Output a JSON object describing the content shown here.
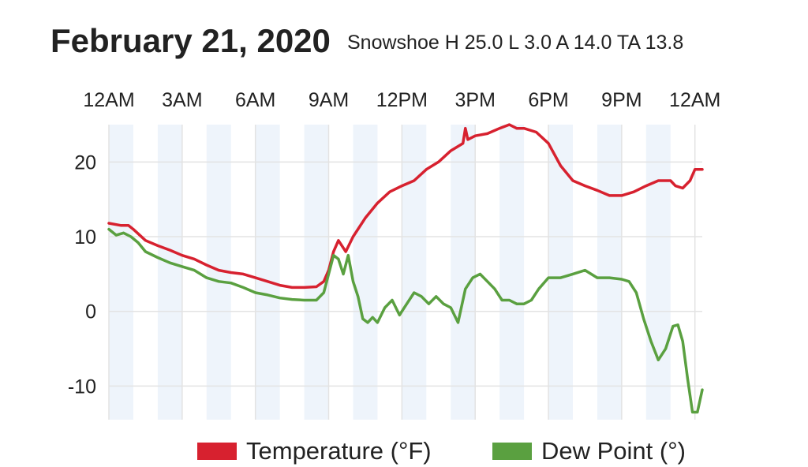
{
  "header": {
    "title": "February 21, 2020",
    "subtitle": "Snowshoe H 25.0 L 3.0 A 14.0 TA 13.8"
  },
  "colors": {
    "temperature": "#d7212f",
    "dew_point": "#5aa040",
    "band": "#eef4fb",
    "grid": "#e3e3e3"
  },
  "chart_data": {
    "type": "line",
    "x_axis": {
      "position": "top",
      "ticks": [
        0,
        3,
        6,
        9,
        12,
        15,
        18,
        21,
        24
      ],
      "tick_labels": [
        "12AM",
        "3AM",
        "6AM",
        "9AM",
        "12PM",
        "3PM",
        "6PM",
        "9PM",
        "12AM"
      ],
      "range": [
        0,
        24.3
      ],
      "unit": "hour"
    },
    "y_axis": {
      "ticks": [
        20,
        10,
        0,
        -10
      ],
      "tick_labels": [
        "20",
        "10",
        "0",
        "-10"
      ],
      "range": [
        -14.5,
        25
      ]
    },
    "grid": true,
    "legend_position": "bottom",
    "series": [
      {
        "name": "Temperature (°F)",
        "x": [
          0,
          0.5,
          0.8,
          1,
          1.5,
          2,
          2.5,
          3,
          3.5,
          4,
          4.5,
          5,
          5.5,
          6,
          6.5,
          7,
          7.5,
          8,
          8.5,
          8.8,
          9.0,
          9.2,
          9.4,
          9.7,
          10,
          10.5,
          11,
          11.5,
          12,
          12.5,
          13,
          13.5,
          14,
          14.5,
          14.6,
          14.7,
          15,
          15.5,
          16,
          16.4,
          16.7,
          17,
          17.5,
          18,
          18.5,
          19,
          19.5,
          20,
          20.5,
          21,
          21.5,
          22,
          22.5,
          23,
          23.2,
          23.5,
          23.8,
          24.0,
          24.3
        ],
        "y": [
          11.8,
          11.5,
          11.5,
          11,
          9.5,
          8.8,
          8.2,
          7.5,
          7,
          6.2,
          5.5,
          5.2,
          5,
          4.5,
          4,
          3.5,
          3.2,
          3.2,
          3.3,
          4,
          5.5,
          8,
          9.5,
          8,
          10,
          12.5,
          14.5,
          16,
          16.8,
          17.5,
          19,
          20,
          21.5,
          22.5,
          24.5,
          23,
          23.5,
          23.8,
          24.5,
          25,
          24.5,
          24.5,
          24,
          22.5,
          19.5,
          17.5,
          16.8,
          16.2,
          15.5,
          15.5,
          16,
          16.8,
          17.5,
          17.5,
          16.8,
          16.5,
          17.5,
          19,
          19
        ]
      },
      {
        "name": "Dew Point (°)",
        "x": [
          0,
          0.3,
          0.6,
          0.9,
          1.2,
          1.5,
          2,
          2.5,
          3,
          3.5,
          4,
          4.5,
          5,
          5.5,
          6,
          6.5,
          7,
          7.5,
          8,
          8.5,
          8.8,
          9.0,
          9.2,
          9.4,
          9.6,
          9.8,
          10,
          10.2,
          10.4,
          10.6,
          10.8,
          11,
          11.3,
          11.6,
          11.9,
          12.2,
          12.5,
          12.8,
          13.1,
          13.4,
          13.7,
          14.0,
          14.3,
          14.6,
          14.9,
          15.2,
          15.5,
          15.8,
          16.1,
          16.4,
          16.7,
          17.0,
          17.3,
          17.6,
          18,
          18.5,
          19,
          19.5,
          20,
          20.5,
          21,
          21.3,
          21.6,
          21.9,
          22.2,
          22.5,
          22.8,
          23.1,
          23.3,
          23.5,
          23.7,
          23.9,
          24.1,
          24.3
        ],
        "y": [
          11,
          10.2,
          10.5,
          10,
          9.2,
          8,
          7.2,
          6.5,
          6,
          5.5,
          4.5,
          4,
          3.8,
          3.2,
          2.5,
          2.2,
          1.8,
          1.6,
          1.5,
          1.5,
          2.5,
          5,
          7.5,
          7,
          5,
          7.5,
          4,
          2,
          -1,
          -1.5,
          -0.8,
          -1.5,
          0.5,
          1.5,
          -0.5,
          1,
          2.5,
          2,
          1,
          2,
          1,
          0.5,
          -1.5,
          3,
          4.5,
          5,
          4,
          3,
          1.5,
          1.5,
          1,
          1,
          1.5,
          3,
          4.5,
          4.5,
          5,
          5.5,
          4.5,
          4.5,
          4.3,
          4,
          2.5,
          -1,
          -4,
          -6.5,
          -5,
          -2,
          -1.8,
          -4,
          -9,
          -13.5,
          -13.5,
          -10.5
        ]
      }
    ]
  }
}
